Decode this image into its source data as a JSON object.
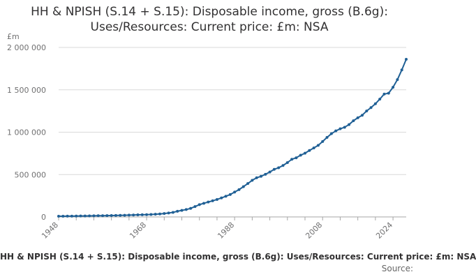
{
  "chart_data": {
    "type": "line",
    "title_line1": "HH & NPISH (S.14 + S.15): Disposable income, gross (B.6g):",
    "title_line2": "Uses/Resources: Current price: £m: NSA",
    "ylabel": "£m",
    "xlabel": "",
    "xlim": [
      1948,
      2024
    ],
    "ylim": [
      0,
      2000000
    ],
    "yticks": [
      0,
      500000,
      1000000,
      1500000,
      2000000
    ],
    "ytick_labels": [
      "0",
      "500 000",
      "1 000 000",
      "1 500 000",
      "2 000 000"
    ],
    "xticks": [
      1948,
      1968,
      1988,
      2008,
      2024
    ],
    "xtick_labels": [
      "1948",
      "1968",
      "1988",
      "2008",
      "2024"
    ],
    "grid": "horizontal",
    "series": [
      {
        "color": "#206095",
        "points": [
          [
            1948,
            8000
          ],
          [
            1949,
            8500
          ],
          [
            1950,
            9000
          ],
          [
            1951,
            9700
          ],
          [
            1952,
            10300
          ],
          [
            1953,
            11000
          ],
          [
            1954,
            11600
          ],
          [
            1955,
            12400
          ],
          [
            1956,
            13300
          ],
          [
            1957,
            14000
          ],
          [
            1958,
            14700
          ],
          [
            1959,
            15500
          ],
          [
            1960,
            16600
          ],
          [
            1961,
            17800
          ],
          [
            1962,
            18700
          ],
          [
            1963,
            19800
          ],
          [
            1964,
            21300
          ],
          [
            1965,
            22800
          ],
          [
            1966,
            24300
          ],
          [
            1967,
            25500
          ],
          [
            1968,
            27200
          ],
          [
            1969,
            29000
          ],
          [
            1970,
            31800
          ],
          [
            1971,
            35000
          ],
          [
            1972,
            40000
          ],
          [
            1973,
            46000
          ],
          [
            1974,
            54000
          ],
          [
            1975,
            67000
          ],
          [
            1976,
            77000
          ],
          [
            1977,
            87000
          ],
          [
            1978,
            101000
          ],
          [
            1979,
            122000
          ],
          [
            1980,
            145000
          ],
          [
            1981,
            161000
          ],
          [
            1982,
            176000
          ],
          [
            1983,
            190000
          ],
          [
            1984,
            206000
          ],
          [
            1985,
            224000
          ],
          [
            1986,
            244000
          ],
          [
            1987,
            264000
          ],
          [
            1988,
            293000
          ],
          [
            1989,
            322000
          ],
          [
            1990,
            357000
          ],
          [
            1991,
            394000
          ],
          [
            1992,
            432000
          ],
          [
            1993,
            462000
          ],
          [
            1994,
            479000
          ],
          [
            1995,
            503000
          ],
          [
            1996,
            530000
          ],
          [
            1997,
            562000
          ],
          [
            1998,
            580000
          ],
          [
            1999,
            607000
          ],
          [
            2000,
            641000
          ],
          [
            2001,
            680000
          ],
          [
            2002,
            698000
          ],
          [
            2003,
            728000
          ],
          [
            2004,
            752000
          ],
          [
            2005,
            784000
          ],
          [
            2006,
            814000
          ],
          [
            2007,
            845000
          ],
          [
            2008,
            890000
          ],
          [
            2009,
            938000
          ],
          [
            2010,
            982000
          ],
          [
            2011,
            1015000
          ],
          [
            2012,
            1040000
          ],
          [
            2013,
            1058000
          ],
          [
            2014,
            1090000
          ],
          [
            2015,
            1135000
          ],
          [
            2016,
            1170000
          ],
          [
            2017,
            1200000
          ],
          [
            2018,
            1250000
          ],
          [
            2019,
            1290000
          ],
          [
            2020,
            1335000
          ],
          [
            2021,
            1390000
          ],
          [
            2022,
            1450000
          ],
          [
            2023,
            1460000
          ],
          [
            2024,
            1530000
          ],
          [
            2025,
            1620000
          ],
          [
            2026,
            1735000
          ],
          [
            2027,
            1860000
          ]
        ]
      }
    ],
    "caption": "HH & NPISH (S.14 + S.15): Disposable income, gross (B.6g): Uses/Resources: Current price: £m: NSA",
    "source_label": "Source:"
  },
  "colors": {
    "line": "#206095",
    "grid": "#d9d9d9",
    "axis": "#a6a6a6",
    "text": "#323132",
    "muted": "#707071"
  }
}
